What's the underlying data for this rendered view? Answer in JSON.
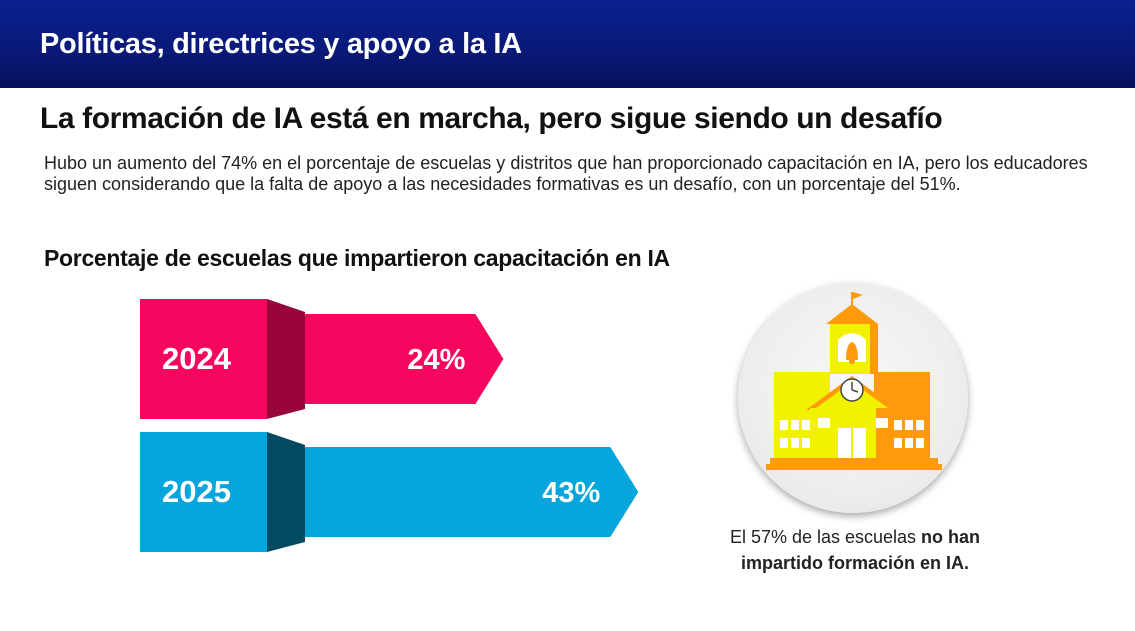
{
  "header": {
    "title": "Políticas, directrices y apoyo a la IA"
  },
  "headline": "La formación de IA está en marcha, pero sigue siendo un desafío",
  "intro": "Hubo un aumento del 74% en el porcentaje de escuelas y distritos que han proporcionado capacitación en IA, pero los educadores siguen considerando que la falta de apoyo a las necesidades formativas es un desafío, con un porcentaje del 51%.",
  "chart_data": {
    "type": "bar",
    "orientation": "horizontal",
    "title": "Porcentaje de escuelas que impartieron capacitación en IA",
    "categories": [
      "2024",
      "2025"
    ],
    "values": [
      24,
      43
    ],
    "data_labels": [
      "24%",
      "43%"
    ],
    "unit": "%",
    "colors": [
      "#f5075f",
      "#05a6db"
    ],
    "grid": false
  },
  "callout": {
    "icon": "school-building-icon",
    "text_prefix": "El 57% de las escuelas ",
    "text_bold_1": "no han",
    "text_bold_2": "impartido formación en IA."
  },
  "colors": {
    "header_bg": "#0a1a7a",
    "school_yellow": "#f2f200",
    "school_orange": "#ff9a0d"
  }
}
